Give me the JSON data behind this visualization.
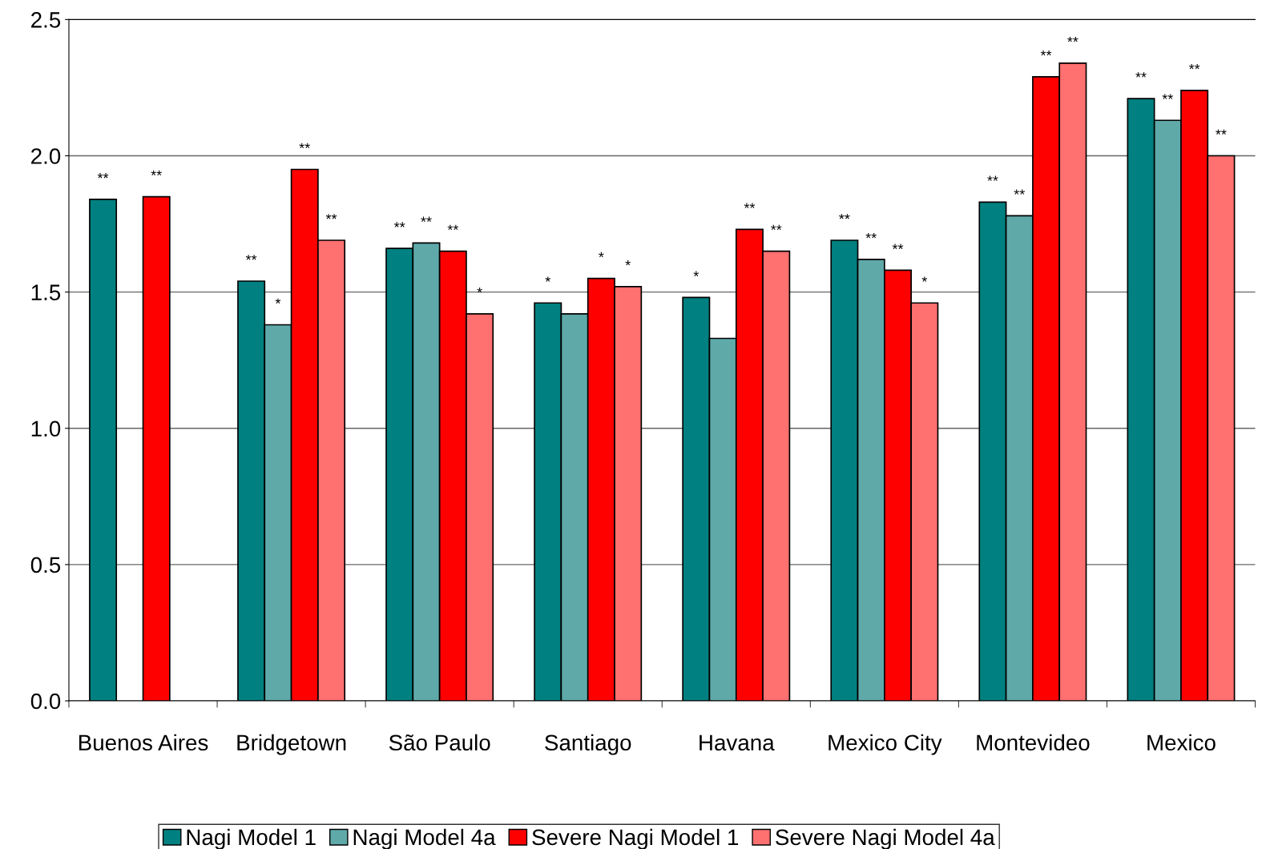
{
  "chart_data": {
    "type": "bar",
    "categories": [
      "Buenos Aires",
      "Bridgetown",
      "São Paulo",
      "Santiago",
      "Havana",
      "Mexico City",
      "Montevideo",
      "Mexico"
    ],
    "series": [
      {
        "name": "Nagi Model 1",
        "color": "#008080",
        "values": [
          1.84,
          1.54,
          1.66,
          1.46,
          1.48,
          1.69,
          1.83,
          2.21
        ],
        "value_labels": [
          "**",
          "**",
          "**",
          "*",
          "*",
          "**",
          "**",
          "**"
        ]
      },
      {
        "name": "Nagi Model 4a",
        "color": "#5fa9a9",
        "values": [
          null,
          1.38,
          1.68,
          1.42,
          1.33,
          1.62,
          1.78,
          2.13
        ],
        "value_labels": [
          null,
          "*",
          "**",
          null,
          null,
          "**",
          "**",
          "**"
        ]
      },
      {
        "name": "Severe Nagi Model 1",
        "color": "#ff0000",
        "values": [
          1.85,
          1.95,
          1.65,
          1.55,
          1.73,
          1.58,
          2.29,
          2.24
        ],
        "value_labels": [
          "**",
          "**",
          "**",
          "*",
          "**",
          "**",
          "**",
          "**"
        ]
      },
      {
        "name": "Severe Nagi Model 4a",
        "color": "#ff7070",
        "values": [
          null,
          1.69,
          1.42,
          1.52,
          1.65,
          1.46,
          2.34,
          2.0
        ],
        "value_labels": [
          null,
          "**",
          "*",
          "*",
          "**",
          "*",
          "**",
          "**"
        ]
      }
    ],
    "ylim": [
      0,
      2.5
    ],
    "yticks": [
      {
        "value": 0,
        "label": "0.0"
      },
      {
        "value": 0.5,
        "label": "0.5"
      },
      {
        "value": 1.0,
        "label": "1.0"
      },
      {
        "value": 1.5,
        "label": "1.5"
      },
      {
        "value": 2.0,
        "label": "2.0"
      },
      {
        "value": 2.5,
        "label": "2.5"
      }
    ],
    "grid": "y",
    "legend": "bottom"
  }
}
